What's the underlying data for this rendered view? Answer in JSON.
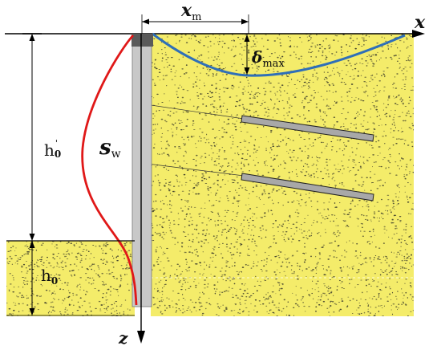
{
  "diagram": {
    "labels": {
      "x_axis": "x",
      "z_axis": "z",
      "xm_main": "x",
      "xm_sub": "m",
      "delta_main": "δ",
      "delta_sub": "max",
      "sw_main": "s",
      "sw_sub": "w",
      "h0p_main": "h",
      "h0p_prime": "'",
      "h0p_sub": "0",
      "h0_main": "h",
      "h0_sub": "0"
    },
    "colors": {
      "soil": "#f4ec6a",
      "soil_speckle": "#3a3a2a",
      "wall": "#c8c8c8",
      "wall_cap": "#5a5a5a",
      "deflection_curve": "#e01818",
      "settlement_curve": "#2f6fb8",
      "axis": "#000000",
      "anchor": "#a8a8a8"
    },
    "icons": {
      "anchor": "anchor-rod-icon"
    }
  }
}
